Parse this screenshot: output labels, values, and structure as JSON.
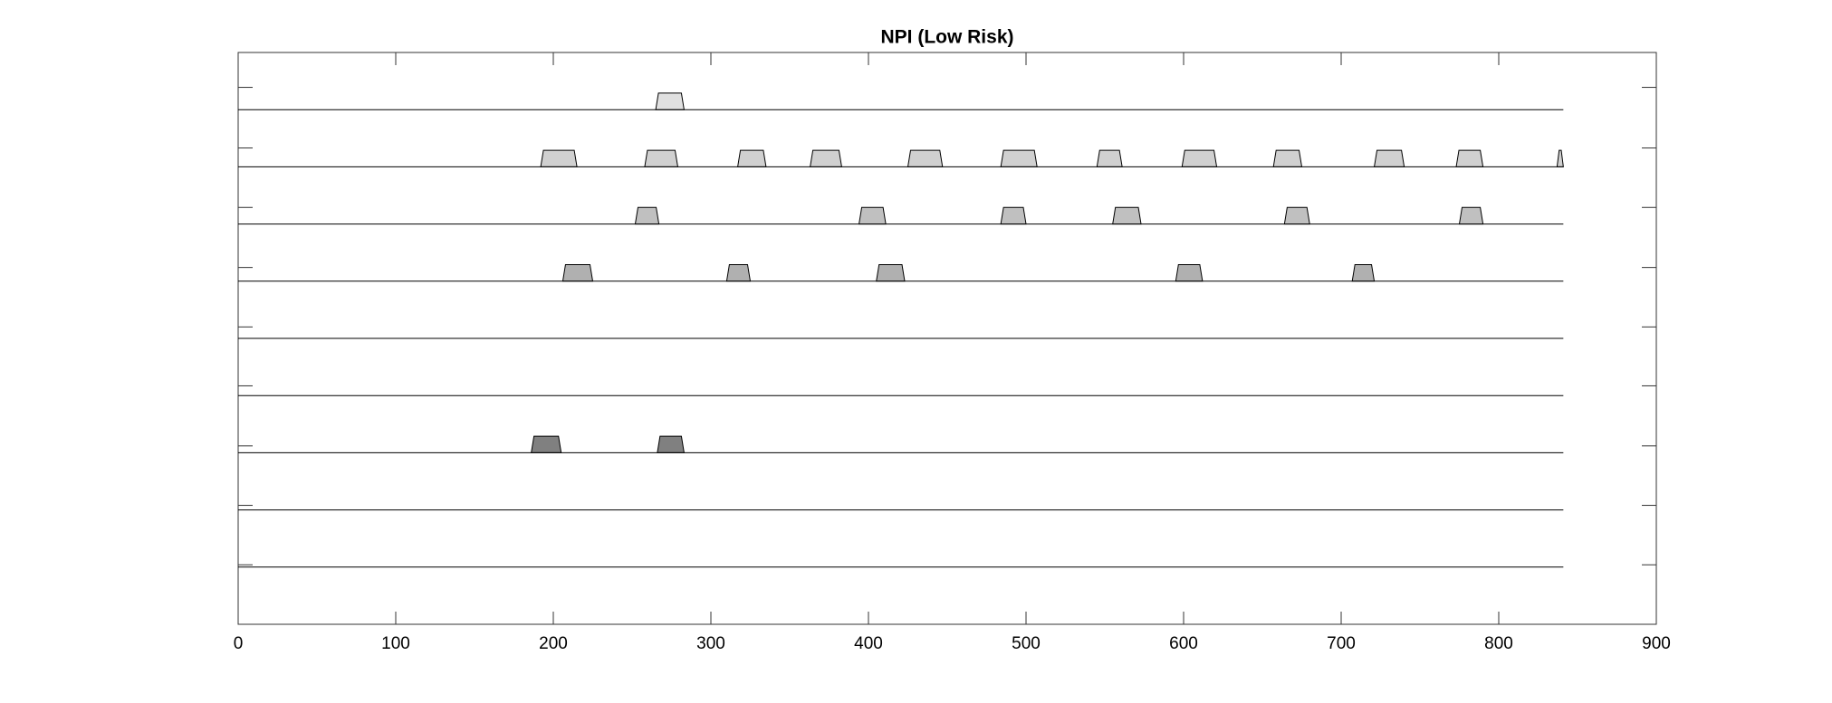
{
  "chart_data": {
    "type": "pulse-train",
    "title": "NPI (Low Risk)",
    "xlim": [
      0,
      900
    ],
    "xticks": [
      0,
      100,
      200,
      300,
      400,
      500,
      600,
      700,
      800,
      900
    ],
    "ylim": [
      0,
      10
    ],
    "yticks": [
      1.04,
      2.08,
      3.12,
      4.17,
      5.2,
      6.24,
      7.29,
      8.33,
      9.39
    ],
    "baseline_end": 841,
    "pulse_height": 0.29,
    "series": [
      {
        "color": "#e0e0e0",
        "level": 9,
        "pulses": [
          [
            265,
            283
          ]
        ]
      },
      {
        "color": "#d0d0d0",
        "level": 8,
        "pulses": [
          [
            192,
            215
          ],
          [
            258,
            279
          ],
          [
            317,
            335
          ],
          [
            363,
            383
          ],
          [
            425,
            447
          ],
          [
            484,
            507
          ],
          [
            545,
            561
          ],
          [
            599,
            621
          ],
          [
            657,
            675
          ],
          [
            721,
            740
          ],
          [
            773,
            790
          ],
          [
            837,
            841
          ]
        ]
      },
      {
        "color": "#c0c0c0",
        "level": 7,
        "pulses": [
          [
            252,
            267
          ],
          [
            394,
            411
          ],
          [
            484,
            500
          ],
          [
            555,
            573
          ],
          [
            664,
            680
          ],
          [
            775,
            790
          ]
        ]
      },
      {
        "color": "#b0b0b0",
        "level": 6,
        "pulses": [
          [
            206,
            225
          ],
          [
            310,
            325
          ],
          [
            405,
            423
          ],
          [
            595,
            612
          ],
          [
            707,
            721
          ]
        ]
      },
      {
        "color": "#a0a0a0",
        "level": 5,
        "pulses": []
      },
      {
        "color": "#909090",
        "level": 4,
        "pulses": []
      },
      {
        "color": "#808080",
        "level": 3,
        "pulses": [
          [
            186,
            205
          ],
          [
            266,
            283
          ]
        ]
      },
      {
        "color": "#707070",
        "level": 2,
        "pulses": []
      },
      {
        "color": "#606060",
        "level": 1,
        "pulses": []
      }
    ]
  }
}
